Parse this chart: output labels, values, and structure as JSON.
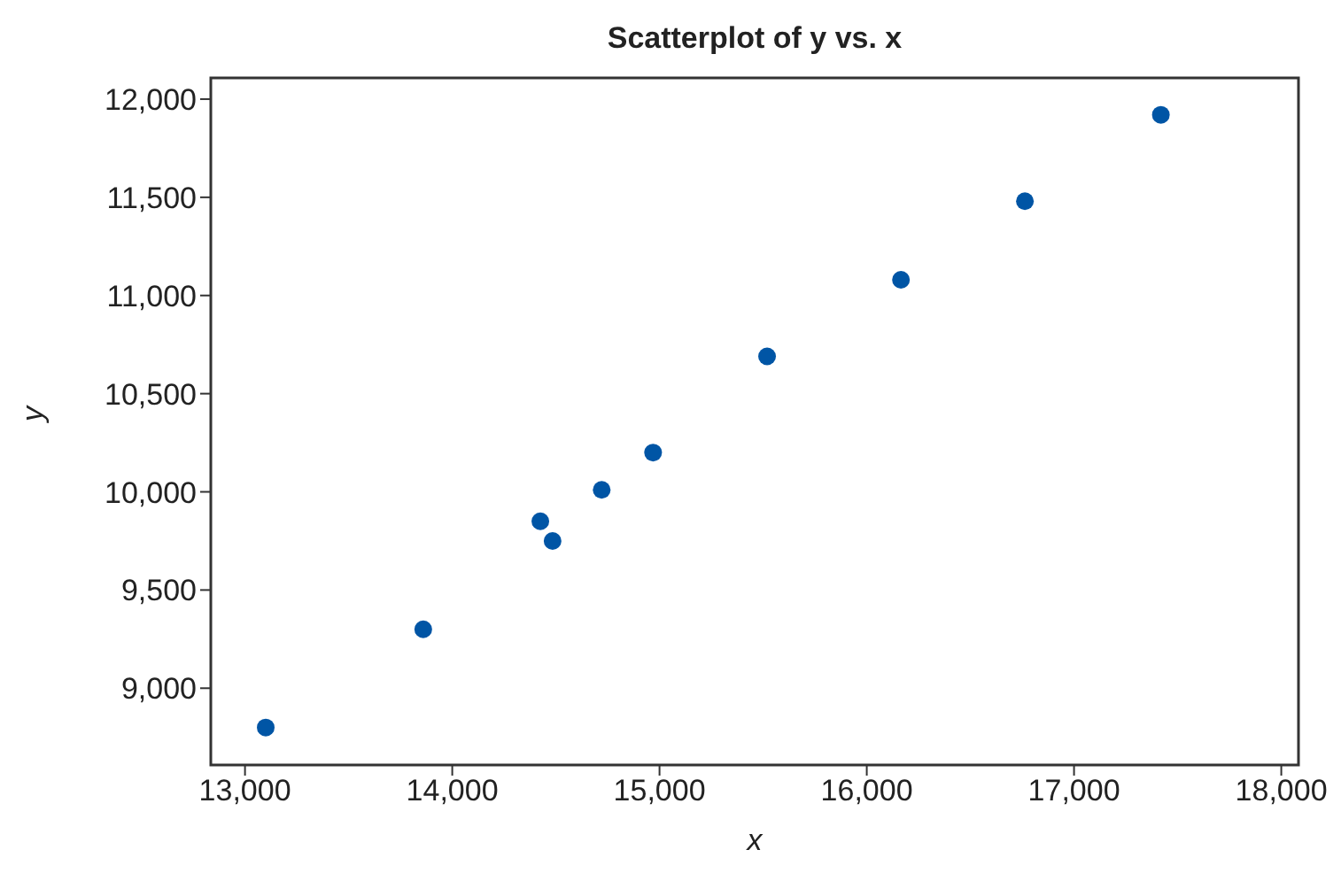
{
  "chart_data": {
    "type": "scatter",
    "title": "Scatterplot of y vs. x",
    "xlabel": "x",
    "ylabel": "y",
    "x": [
      13100,
      13860,
      14425,
      14484,
      14721,
      14969,
      15519,
      16165,
      16763,
      17419
    ],
    "series": [
      {
        "color": "#0055a5",
        "values": [
          8800,
          9300,
          9850,
          9750,
          10010,
          10200,
          10690,
          11080,
          11480,
          11920
        ]
      }
    ],
    "xlim": [
      12835,
      18083
    ],
    "ylim": [
      8609,
      12108
    ],
    "xticks": [
      {
        "value": 13000,
        "label": "13,000"
      },
      {
        "value": 14000,
        "label": "14,000"
      },
      {
        "value": 15000,
        "label": "15,000"
      },
      {
        "value": 16000,
        "label": "16,000"
      },
      {
        "value": 17000,
        "label": "17,000"
      },
      {
        "value": 18000,
        "label": "18,000"
      }
    ],
    "yticks": [
      {
        "value": 9000,
        "label": "9,000"
      },
      {
        "value": 9500,
        "label": "9,500"
      },
      {
        "value": 10000,
        "label": "10,000"
      },
      {
        "value": 10500,
        "label": "10,500"
      },
      {
        "value": 11000,
        "label": "11,000"
      },
      {
        "value": 11500,
        "label": "11,500"
      },
      {
        "value": 12000,
        "label": "12,000"
      }
    ],
    "grid": false,
    "legend": false,
    "marker": "circle"
  }
}
